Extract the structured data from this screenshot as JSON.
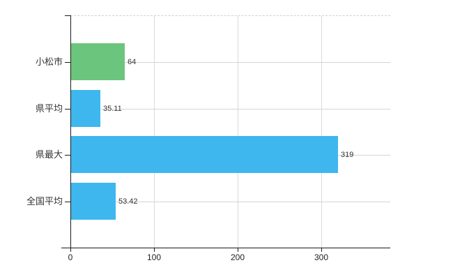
{
  "chart_data": {
    "type": "bar",
    "orientation": "horizontal",
    "title": "",
    "xlabel": "",
    "ylabel": "",
    "categories": [
      "小松市",
      "県平均",
      "県最大",
      "全国平均"
    ],
    "values": [
      64,
      35.11,
      319,
      53.42
    ],
    "value_labels": [
      "64",
      "35.11",
      "319",
      "53.42"
    ],
    "bar_colors": [
      "#6cc57c",
      "#3db7ee",
      "#3db7ee",
      "#3db7ee"
    ],
    "x_ticks": [
      0,
      100,
      200,
      300
    ],
    "x_tick_labels": [
      "0",
      "100",
      "200",
      "300"
    ],
    "xlim": [
      0,
      382
    ],
    "grid": true,
    "legend_position": "none"
  },
  "colors": {
    "background": "#ffffff",
    "axis": "#1a1a1a",
    "grid_vertical": "#d9d9d9",
    "grid_horizontal": "#cfd8cf",
    "plot_top_border": "#d0d0d0",
    "text": "#333333",
    "highlight_bar": "#6cc57c",
    "default_bar": "#3db7ee"
  }
}
